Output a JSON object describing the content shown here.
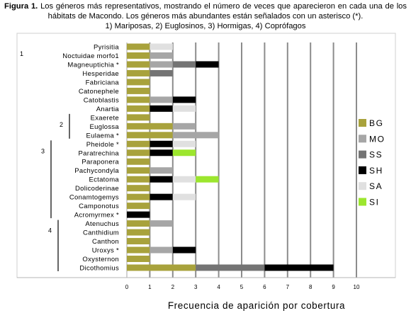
{
  "caption": {
    "label": "Figura 1.",
    "text": "Los géneros más representativos, mostrando el número de veces que aparecieron en cada una de los hábitats de Macondo. Los géneros más abundantes están señalados con un asterisco (*).",
    "line3": "1) Mariposas, 2) Euglosinos, 3) Hormigas, 4) Coprófagos"
  },
  "chart_data": {
    "type": "bar",
    "orientation": "horizontal",
    "stacked": true,
    "xlabel": "Frecuencia de aparición por cobertura",
    "ylabel": "",
    "xlim": [
      0,
      10
    ],
    "xticks": [
      0,
      1,
      2,
      3,
      4,
      5,
      6,
      7,
      8,
      9,
      10
    ],
    "grid": true,
    "legend_position": "right",
    "categories": [
      "Pyrisitia",
      "Noctuidae morfo1",
      "Magneuptichia *",
      "Hesperidae",
      "Fabriciana",
      "Catonephele",
      "Catoblastis",
      "Anartia",
      "Exaerete",
      "Euglossa",
      "Eulaema *",
      "Pheidole *",
      "Paratrechina",
      "Paraponera",
      "Pachycondyla",
      "Ectatoma",
      "Dolicoderinae",
      "Conamtogemys",
      "Camponotus",
      "Acromyrmex *",
      "Atenuchus",
      "Canthidium",
      "Canthon",
      "Uroxys *",
      "Oxysternon",
      "Dicothomius"
    ],
    "groups": [
      {
        "label": "1",
        "from": "Pyrisitia",
        "to": "Anartia"
      },
      {
        "label": "2",
        "from": "Exaerete",
        "to": "Eulaema *"
      },
      {
        "label": "3",
        "from": "Pheidole *",
        "to": "Acromyrmex *"
      },
      {
        "label": "4",
        "from": "Atenuchus",
        "to": "Dicothomius"
      }
    ],
    "series": [
      {
        "name": "BG",
        "color": "#a8a23c",
        "values": [
          1,
          1,
          1,
          1,
          1,
          1,
          1,
          1,
          1,
          2,
          2,
          1,
          1,
          1,
          1,
          1,
          1,
          1,
          1,
          0,
          1,
          1,
          1,
          1,
          1,
          3
        ]
      },
      {
        "name": "MO",
        "color": "#a6a6a6",
        "values": [
          0,
          1,
          1,
          0,
          0,
          0,
          1,
          0,
          0,
          1,
          2,
          0,
          0,
          0,
          1,
          0,
          0,
          0,
          0,
          0,
          1,
          0,
          0,
          1,
          0,
          0
        ]
      },
      {
        "name": "SS",
        "color": "#747474",
        "values": [
          0,
          0,
          1,
          1,
          0,
          0,
          0,
          0,
          0,
          0,
          0,
          0,
          0,
          0,
          0,
          0,
          0,
          0,
          0,
          0,
          0,
          0,
          0,
          0,
          0,
          3
        ]
      },
      {
        "name": "SH",
        "color": "#000000",
        "values": [
          0,
          0,
          1,
          0,
          0,
          0,
          1,
          1,
          0,
          0,
          0,
          1,
          1,
          0,
          0,
          1,
          0,
          1,
          0,
          1,
          0,
          0,
          0,
          1,
          0,
          3
        ]
      },
      {
        "name": "SA",
        "color": "#e0e0e0",
        "values": [
          1,
          0,
          0,
          0,
          0,
          0,
          0,
          1,
          0,
          0,
          0,
          1,
          0,
          0,
          0,
          1,
          0,
          1,
          0,
          0,
          0,
          0,
          0,
          0,
          0,
          0
        ]
      },
      {
        "name": "SI",
        "color": "#9ce62e",
        "values": [
          0,
          0,
          0,
          0,
          0,
          0,
          0,
          0,
          0,
          0,
          0,
          0,
          1,
          0,
          0,
          1,
          0,
          0,
          0,
          0,
          0,
          0,
          0,
          0,
          0,
          0
        ]
      }
    ]
  }
}
